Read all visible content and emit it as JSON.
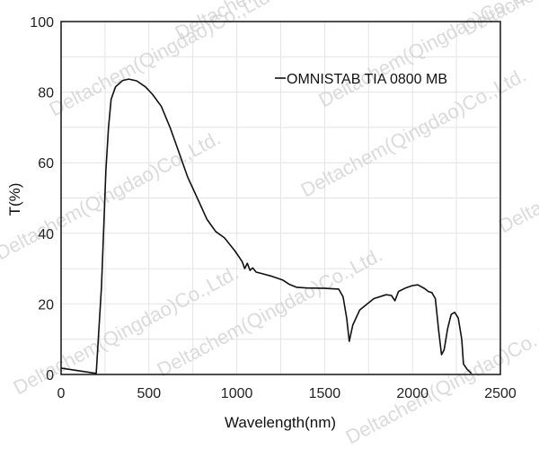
{
  "chart_data": {
    "type": "line",
    "title": "",
    "xlabel": "Wavelength(nm)",
    "ylabel": "T(%)",
    "xlim": [
      0,
      2500
    ],
    "ylim": [
      0,
      100
    ],
    "x_ticks": [
      0,
      500,
      1000,
      1500,
      2000,
      2500
    ],
    "y_ticks": [
      0,
      20,
      40,
      60,
      80,
      100
    ],
    "grid": true,
    "legend_position": "upper right (inside plot)",
    "series": [
      {
        "name": "OMNISTAB TIA 0800 MB",
        "color": "#111111",
        "x": [
          0,
          200,
          230,
          255,
          270,
          285,
          310,
          350,
          385,
          430,
          480,
          520,
          570,
          620,
          670,
          720,
          775,
          830,
          880,
          930,
          990,
          1030,
          1045,
          1060,
          1075,
          1090,
          1110,
          1150,
          1200,
          1260,
          1300,
          1340,
          1400,
          1500,
          1580,
          1605,
          1625,
          1640,
          1660,
          1700,
          1730,
          1780,
          1850,
          1880,
          1900,
          1920,
          1960,
          2000,
          2030,
          2070,
          2090,
          2110,
          2130,
          2150,
          2165,
          2180,
          2200,
          2220,
          2240,
          2260,
          2280,
          2290,
          2310,
          2335
        ],
        "values": [
          1.8,
          0.3,
          25,
          58,
          70,
          78,
          81.5,
          83.3,
          83.7,
          83.2,
          81.5,
          79.4,
          76,
          70,
          63,
          56,
          50,
          44,
          40.5,
          38.7,
          35,
          32,
          30,
          31.5,
          29.5,
          30.2,
          29,
          28.5,
          27.8,
          26.8,
          25.5,
          24.7,
          24.5,
          24.4,
          24.2,
          22,
          16,
          9.4,
          14,
          18.3,
          19.5,
          21.5,
          22.6,
          22.4,
          20.9,
          23.5,
          24.5,
          25.2,
          25.4,
          24.3,
          23.5,
          23.2,
          21.5,
          12,
          5.6,
          7,
          13,
          17,
          17.6,
          16,
          10,
          3,
          1.5,
          0.3
        ]
      }
    ],
    "annotations": [
      "Watermark: Deltachem(Qingdao)Co.,Ltd."
    ]
  },
  "legend": {
    "label": "OMNISTAB TIA 0800 MB"
  },
  "axes": {
    "xlabel": "Wavelength(nm)",
    "ylabel": "T(%)"
  },
  "watermark": {
    "text": "Deltachem(Qingdao)Co.,Ltd."
  }
}
